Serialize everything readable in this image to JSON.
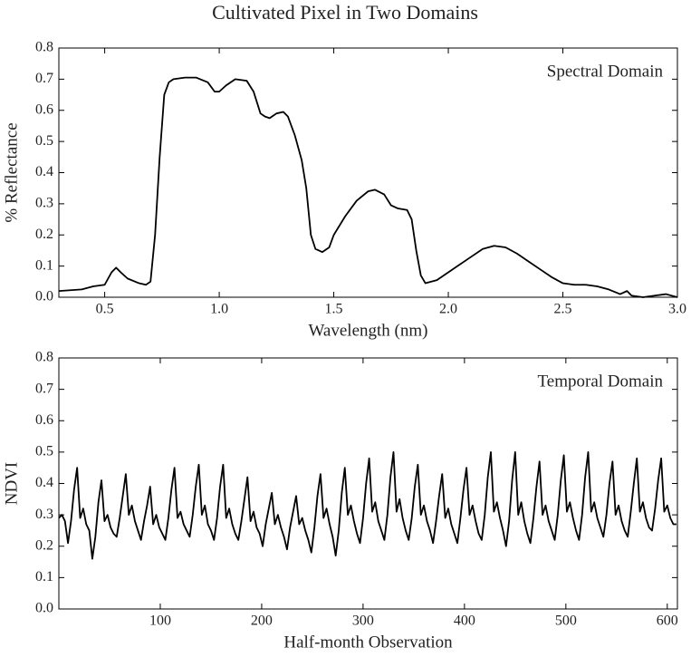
{
  "title": "Cultivated Pixel in Two Domains",
  "chart_data": [
    {
      "type": "line",
      "annotation": "Spectral Domain",
      "xlabel": "Wavelength (nm)",
      "ylabel": "% Reflectance",
      "color": "#000000",
      "xlim": [
        0.3,
        3.0
      ],
      "xticks": [
        0.5,
        {
          "value": 1.0,
          "label": "1.0"
        },
        1.5,
        {
          "value": 2.0,
          "label": "2.0"
        },
        2.5,
        {
          "value": 3.0,
          "label": "3.0"
        }
      ],
      "ylim": [
        0,
        0.8
      ],
      "yticks": [
        {
          "value": 0,
          "label": "0.0"
        },
        0.1,
        0.2,
        0.3,
        0.4,
        0.5,
        0.6,
        0.7,
        0.8
      ],
      "x": [
        0.3,
        0.4,
        0.45,
        0.5,
        0.53,
        0.55,
        0.57,
        0.6,
        0.65,
        0.68,
        0.7,
        0.72,
        0.74,
        0.76,
        0.78,
        0.8,
        0.85,
        0.9,
        0.95,
        0.98,
        1.0,
        1.03,
        1.07,
        1.12,
        1.15,
        1.18,
        1.2,
        1.22,
        1.25,
        1.28,
        1.3,
        1.33,
        1.36,
        1.38,
        1.4,
        1.42,
        1.45,
        1.48,
        1.5,
        1.55,
        1.6,
        1.65,
        1.68,
        1.72,
        1.75,
        1.78,
        1.82,
        1.84,
        1.86,
        1.88,
        1.9,
        1.95,
        2.0,
        2.05,
        2.1,
        2.15,
        2.2,
        2.25,
        2.3,
        2.35,
        2.4,
        2.45,
        2.5,
        2.55,
        2.6,
        2.65,
        2.7,
        2.75,
        2.78,
        2.8,
        2.85,
        2.9,
        2.95,
        3.0
      ],
      "values": [
        0.02,
        0.025,
        0.035,
        0.04,
        0.08,
        0.095,
        0.08,
        0.06,
        0.045,
        0.04,
        0.05,
        0.2,
        0.45,
        0.65,
        0.69,
        0.7,
        0.705,
        0.705,
        0.69,
        0.66,
        0.66,
        0.68,
        0.7,
        0.695,
        0.66,
        0.59,
        0.58,
        0.575,
        0.59,
        0.595,
        0.58,
        0.52,
        0.44,
        0.35,
        0.2,
        0.155,
        0.145,
        0.16,
        0.2,
        0.26,
        0.31,
        0.34,
        0.345,
        0.33,
        0.295,
        0.285,
        0.28,
        0.25,
        0.15,
        0.07,
        0.045,
        0.055,
        0.08,
        0.105,
        0.13,
        0.155,
        0.165,
        0.16,
        0.14,
        0.115,
        0.09,
        0.065,
        0.045,
        0.04,
        0.04,
        0.035,
        0.025,
        0.01,
        0.02,
        0.005,
        0,
        0.005,
        0.01,
        0
      ]
    },
    {
      "type": "line",
      "annotation": "Temporal Domain",
      "xlabel": "Half-month Observation",
      "ylabel": "NDVI",
      "color": "#000000",
      "xlim": [
        0,
        610
      ],
      "xticks": [
        100,
        200,
        300,
        400,
        500,
        600
      ],
      "ylim": [
        0,
        0.8
      ],
      "yticks": [
        {
          "value": 0,
          "label": "0.0"
        },
        0.1,
        0.2,
        0.3,
        0.4,
        0.5,
        0.6,
        0.7,
        0.8
      ],
      "x": [
        0,
        3,
        6,
        9,
        12,
        15,
        18,
        21,
        24,
        27,
        30,
        33,
        36,
        39,
        42,
        45,
        48,
        51,
        54,
        57,
        60,
        63,
        66,
        69,
        72,
        75,
        78,
        81,
        84,
        87,
        90,
        93,
        96,
        99,
        102,
        105,
        108,
        111,
        114,
        117,
        120,
        123,
        126,
        129,
        132,
        135,
        138,
        141,
        144,
        147,
        150,
        153,
        156,
        159,
        162,
        165,
        168,
        171,
        174,
        177,
        180,
        183,
        186,
        189,
        192,
        195,
        198,
        201,
        204,
        207,
        210,
        213,
        216,
        219,
        222,
        225,
        228,
        231,
        234,
        237,
        240,
        243,
        246,
        249,
        252,
        255,
        258,
        261,
        264,
        267,
        270,
        273,
        276,
        279,
        282,
        285,
        288,
        291,
        294,
        297,
        300,
        303,
        306,
        309,
        312,
        315,
        318,
        321,
        324,
        327,
        330,
        333,
        336,
        339,
        342,
        345,
        348,
        351,
        354,
        357,
        360,
        363,
        366,
        369,
        372,
        375,
        378,
        381,
        384,
        387,
        390,
        393,
        396,
        399,
        402,
        405,
        408,
        411,
        414,
        417,
        420,
        423,
        426,
        429,
        432,
        435,
        438,
        441,
        444,
        447,
        450,
        453,
        456,
        459,
        462,
        465,
        468,
        471,
        474,
        477,
        480,
        483,
        486,
        489,
        492,
        495,
        498,
        501,
        504,
        507,
        510,
        513,
        516,
        519,
        522,
        525,
        528,
        531,
        534,
        537,
        540,
        543,
        546,
        549,
        552,
        555,
        558,
        561,
        564,
        567,
        570,
        573,
        576,
        579,
        582,
        585,
        588,
        591,
        594,
        597,
        600,
        603,
        606,
        609
      ],
      "values": [
        0.29,
        0.3,
        0.28,
        0.21,
        0.28,
        0.38,
        0.45,
        0.29,
        0.32,
        0.27,
        0.25,
        0.16,
        0.23,
        0.34,
        0.41,
        0.28,
        0.3,
        0.26,
        0.24,
        0.23,
        0.29,
        0.36,
        0.43,
        0.3,
        0.33,
        0.28,
        0.25,
        0.22,
        0.28,
        0.33,
        0.39,
        0.27,
        0.3,
        0.26,
        0.24,
        0.22,
        0.29,
        0.38,
        0.45,
        0.29,
        0.31,
        0.27,
        0.25,
        0.23,
        0.3,
        0.39,
        0.46,
        0.3,
        0.33,
        0.27,
        0.25,
        0.22,
        0.29,
        0.39,
        0.46,
        0.29,
        0.32,
        0.27,
        0.24,
        0.22,
        0.28,
        0.35,
        0.42,
        0.28,
        0.31,
        0.26,
        0.24,
        0.2,
        0.27,
        0.32,
        0.37,
        0.27,
        0.3,
        0.26,
        0.23,
        0.19,
        0.26,
        0.31,
        0.36,
        0.27,
        0.29,
        0.25,
        0.22,
        0.18,
        0.26,
        0.36,
        0.43,
        0.29,
        0.32,
        0.27,
        0.23,
        0.17,
        0.25,
        0.37,
        0.45,
        0.3,
        0.33,
        0.28,
        0.24,
        0.21,
        0.29,
        0.4,
        0.48,
        0.31,
        0.34,
        0.28,
        0.25,
        0.22,
        0.3,
        0.42,
        0.5,
        0.31,
        0.35,
        0.29,
        0.25,
        0.22,
        0.29,
        0.39,
        0.46,
        0.3,
        0.33,
        0.28,
        0.25,
        0.21,
        0.28,
        0.36,
        0.43,
        0.29,
        0.32,
        0.27,
        0.24,
        0.21,
        0.29,
        0.38,
        0.45,
        0.3,
        0.33,
        0.28,
        0.24,
        0.22,
        0.3,
        0.42,
        0.5,
        0.31,
        0.34,
        0.29,
        0.25,
        0.2,
        0.28,
        0.41,
        0.5,
        0.3,
        0.34,
        0.28,
        0.24,
        0.21,
        0.29,
        0.39,
        0.47,
        0.3,
        0.33,
        0.28,
        0.25,
        0.22,
        0.3,
        0.41,
        0.49,
        0.31,
        0.34,
        0.29,
        0.25,
        0.22,
        0.3,
        0.42,
        0.5,
        0.31,
        0.34,
        0.29,
        0.26,
        0.23,
        0.3,
        0.4,
        0.47,
        0.3,
        0.33,
        0.28,
        0.25,
        0.23,
        0.31,
        0.4,
        0.48,
        0.31,
        0.34,
        0.29,
        0.26,
        0.25,
        0.32,
        0.41,
        0.48,
        0.31,
        0.33,
        0.29,
        0.27,
        0.27
      ]
    }
  ]
}
